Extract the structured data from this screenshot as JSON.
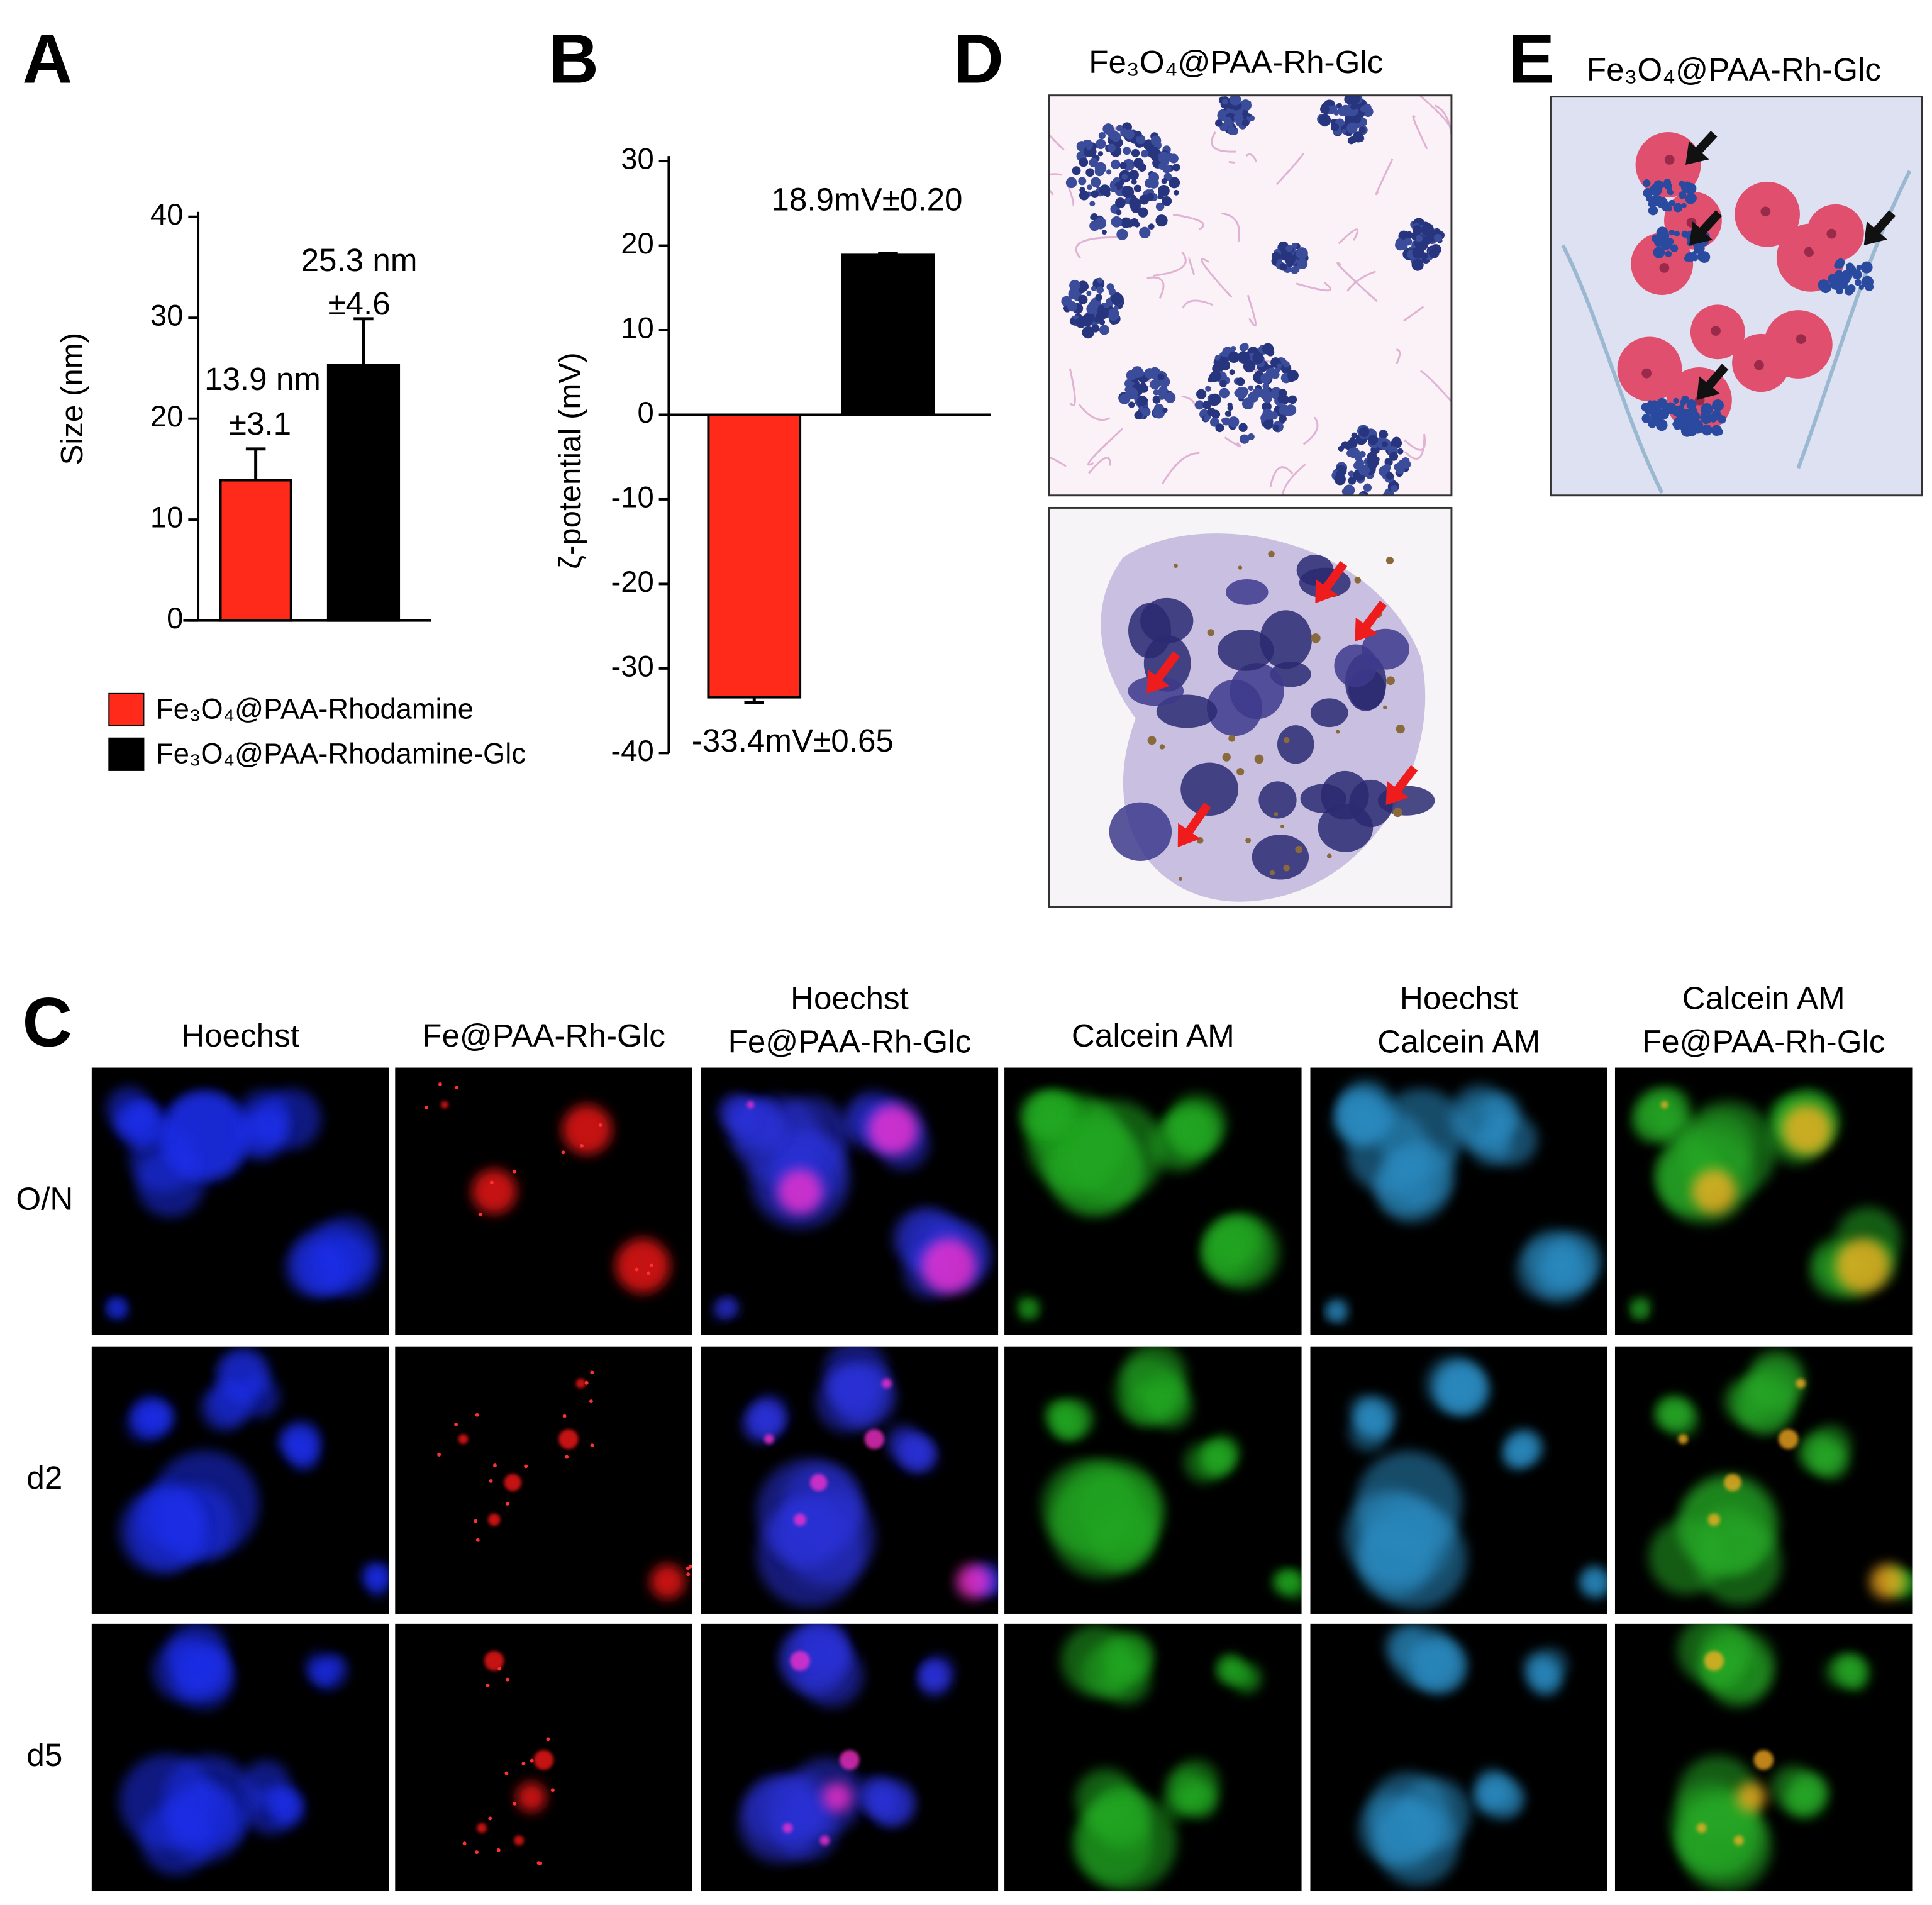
{
  "chart_data": [
    {
      "type": "bar",
      "panel": "A",
      "ylabel": "Size (nm)",
      "ylim": [
        0,
        40
      ],
      "yticks": [
        0,
        10,
        20,
        30,
        40
      ],
      "series": [
        {
          "name": "Fe₃O₄@PAA-Rhodamine",
          "color": "#ff2a1a",
          "values": [
            13.9
          ],
          "errors": [
            3.1
          ],
          "value_labels": [
            "13.9 nm"
          ],
          "error_labels": [
            "±3.1"
          ]
        },
        {
          "name": "Fe₃O₄@PAA-Rhodamine-Glc",
          "color": "#000000",
          "values": [
            25.3
          ],
          "errors": [
            4.6
          ],
          "value_labels": [
            "25.3 nm"
          ],
          "error_labels": [
            "±4.6"
          ]
        }
      ]
    },
    {
      "type": "bar",
      "panel": "B",
      "ylabel": "ζ-potential (mV)",
      "ylim": [
        -40,
        30
      ],
      "yticks": [
        -40,
        -30,
        -20,
        -10,
        0,
        10,
        20,
        30
      ],
      "values": [
        -33.4,
        18.9
      ],
      "errors": [
        0.65,
        0.2
      ],
      "colors": [
        "#ff2a1a",
        "#000000"
      ],
      "value_labels": [
        "-33.4mV±0.65",
        "18.9mV±0.20"
      ]
    }
  ],
  "panel_c": {
    "panel": "C",
    "columns": [
      [
        "Hoechst"
      ],
      [
        "Fe@PAA-Rh-Glc"
      ],
      [
        "Hoechst",
        "Fe@PAA-Rh-Glc"
      ],
      [
        "Calcein AM"
      ],
      [
        "Hoechst",
        "Calcein AM"
      ],
      [
        "Calcein AM",
        "Fe@PAA-Rh-Glc"
      ]
    ],
    "rows": [
      "O/N",
      "d2",
      "d5"
    ]
  },
  "panel_d": {
    "panel": "D",
    "title": "Fe₃O₄@PAA-Rh-Glc"
  },
  "panel_e": {
    "panel": "E",
    "title": "Fe₃O₄@PAA-Rh-Glc"
  }
}
